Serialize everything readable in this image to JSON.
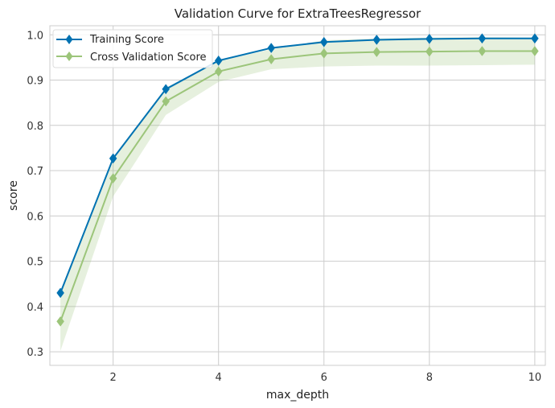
{
  "chart_data": {
    "type": "line",
    "title": "Validation Curve for ExtraTreesRegressor",
    "xlabel": "max_depth",
    "ylabel": "score",
    "xlim": [
      0.8,
      10.2
    ],
    "ylim": [
      0.27,
      1.02
    ],
    "x_ticks": [
      "2",
      "4",
      "6",
      "8",
      "10"
    ],
    "y_ticks": [
      "0.3",
      "0.4",
      "0.5",
      "0.6",
      "0.7",
      "0.8",
      "0.9",
      "1.0"
    ],
    "grid": true,
    "legend_position": "top-left",
    "x": [
      1,
      2,
      3,
      4,
      5,
      6,
      7,
      8,
      9,
      10
    ],
    "series": [
      {
        "name": "Training Score",
        "color": "#0072b2",
        "marker": "diamond",
        "values": [
          0.43,
          0.727,
          0.88,
          0.943,
          0.971,
          0.984,
          0.989,
          0.991,
          0.992,
          0.992
        ],
        "band_lower": [
          0.425,
          0.724,
          0.877,
          0.941,
          0.969,
          0.983,
          0.988,
          0.99,
          0.991,
          0.991
        ],
        "band_upper": [
          0.435,
          0.73,
          0.883,
          0.945,
          0.973,
          0.985,
          0.99,
          0.992,
          0.993,
          0.993
        ]
      },
      {
        "name": "Cross Validation Score",
        "color": "#9cc57a",
        "marker": "diamond",
        "values": [
          0.367,
          0.683,
          0.853,
          0.919,
          0.946,
          0.959,
          0.962,
          0.963,
          0.964,
          0.964
        ],
        "band_lower": [
          0.302,
          0.643,
          0.823,
          0.896,
          0.924,
          0.93,
          0.932,
          0.932,
          0.933,
          0.934
        ],
        "band_upper": [
          0.432,
          0.723,
          0.883,
          0.942,
          0.968,
          0.988,
          0.992,
          0.994,
          0.995,
          0.994
        ]
      }
    ]
  }
}
